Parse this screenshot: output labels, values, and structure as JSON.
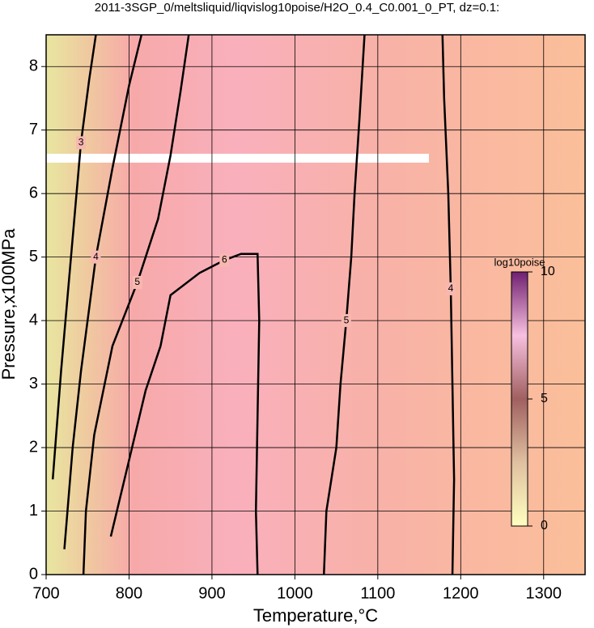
{
  "chart_data": {
    "type": "contour",
    "title": "2011-3SGP_0/meltsliquid/liqvislog10poise/H2O_0.4_C0.001_0_PT, dz=0.1:",
    "x_label": "Temperature,°C",
    "y_label": "Pressure,x100MPa",
    "xlim": [
      700,
      1350
    ],
    "ylim": [
      0,
      8.5
    ],
    "xticks": [
      700,
      800,
      900,
      1000,
      1100,
      1200,
      1300
    ],
    "yticks": [
      0,
      1,
      2,
      3,
      4,
      5,
      6,
      7,
      8
    ],
    "grid": true,
    "contours": [
      {
        "level": 3,
        "x": [
          708,
          718,
          730,
          742,
          752,
          760
        ],
        "values": [
          1.5,
          3.2,
          5.0,
          6.8,
          7.8,
          8.5
        ]
      },
      {
        "level": 4,
        "x": [
          722,
          732,
          742,
          760,
          780,
          800,
          815
        ],
        "values": [
          0.4,
          2.0,
          3.2,
          5.0,
          6.4,
          7.7,
          8.5
        ]
      },
      {
        "level": 5,
        "x": [
          745,
          748,
          758,
          780,
          810,
          835,
          850,
          862,
          872
        ],
        "values": [
          0.0,
          1.0,
          2.2,
          3.6,
          4.6,
          5.6,
          6.6,
          7.6,
          8.5
        ]
      },
      {
        "level": 6,
        "x": [
          778,
          800,
          820,
          838,
          850,
          885,
          915,
          935,
          955,
          957,
          955,
          953,
          955
        ],
        "values": [
          0.6,
          1.8,
          2.9,
          3.6,
          4.4,
          4.75,
          4.95,
          5.05,
          5.05,
          4.0,
          2.5,
          1.0,
          0.0
        ]
      },
      {
        "level": 5,
        "x": [
          1035,
          1038,
          1050,
          1055,
          1062,
          1068,
          1072,
          1078,
          1084
        ],
        "values": [
          0.0,
          1.0,
          2.0,
          3.0,
          4.0,
          5.0,
          6.0,
          7.2,
          8.5
        ]
      },
      {
        "level": 4,
        "x": [
          1190,
          1192,
          1190,
          1188,
          1185,
          1180,
          1178
        ],
        "values": [
          0.0,
          1.5,
          3.0,
          4.5,
          6.0,
          7.5,
          8.5
        ]
      }
    ],
    "colorbar": {
      "label": "log10poise",
      "clim": [
        0,
        10
      ],
      "ticks": [
        0,
        5,
        10
      ]
    }
  }
}
